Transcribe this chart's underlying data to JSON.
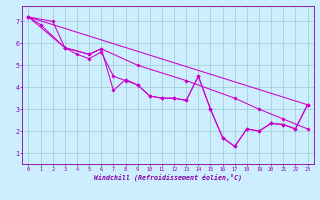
{
  "background_color": "#cceeff",
  "line_color": "#cc00cc",
  "grid_color": "#99cccc",
  "axis_color": "#8800aa",
  "xlabel": "Windchill (Refroidissement éolien,°C)",
  "xlim": [
    -0.5,
    23.5
  ],
  "ylim": [
    0.5,
    7.7
  ],
  "yticks": [
    1,
    2,
    3,
    4,
    5,
    6,
    7
  ],
  "xticks": [
    0,
    1,
    2,
    3,
    4,
    5,
    6,
    7,
    8,
    9,
    10,
    11,
    12,
    13,
    14,
    15,
    16,
    17,
    18,
    19,
    20,
    21,
    22,
    23
  ],
  "line1": [
    [
      0,
      7.2
    ],
    [
      23,
      3.2
    ]
  ],
  "line2": [
    [
      0,
      7.2
    ],
    [
      1,
      6.85
    ],
    [
      3,
      5.8
    ],
    [
      5,
      5.5
    ],
    [
      6,
      5.75
    ],
    [
      9,
      5.0
    ],
    [
      13,
      4.3
    ],
    [
      17,
      3.5
    ],
    [
      19,
      3.0
    ],
    [
      21,
      2.55
    ],
    [
      23,
      2.1
    ]
  ],
  "line3": [
    [
      0,
      7.2
    ],
    [
      2,
      7.0
    ],
    [
      3,
      5.8
    ],
    [
      4,
      5.5
    ],
    [
      5,
      5.3
    ],
    [
      6,
      5.6
    ],
    [
      7,
      4.5
    ],
    [
      8,
      4.3
    ],
    [
      9,
      4.1
    ],
    [
      10,
      3.6
    ],
    [
      11,
      3.5
    ],
    [
      12,
      3.5
    ],
    [
      13,
      3.4
    ],
    [
      14,
      4.5
    ],
    [
      15,
      3.0
    ],
    [
      16,
      1.7
    ],
    [
      17,
      1.3
    ],
    [
      18,
      2.1
    ],
    [
      19,
      2.0
    ],
    [
      20,
      2.35
    ],
    [
      21,
      2.3
    ],
    [
      22,
      2.1
    ],
    [
      23,
      3.2
    ]
  ],
  "line4": [
    [
      0,
      7.2
    ],
    [
      3,
      5.8
    ],
    [
      5,
      5.5
    ],
    [
      6,
      5.75
    ],
    [
      7,
      3.85
    ],
    [
      8,
      4.35
    ],
    [
      9,
      4.1
    ],
    [
      10,
      3.6
    ],
    [
      11,
      3.5
    ],
    [
      12,
      3.5
    ],
    [
      13,
      3.4
    ],
    [
      14,
      4.5
    ],
    [
      15,
      3.0
    ],
    [
      16,
      1.7
    ],
    [
      17,
      1.3
    ],
    [
      18,
      2.1
    ],
    [
      19,
      2.0
    ],
    [
      20,
      2.35
    ],
    [
      21,
      2.3
    ],
    [
      22,
      2.1
    ],
    [
      23,
      3.2
    ]
  ]
}
